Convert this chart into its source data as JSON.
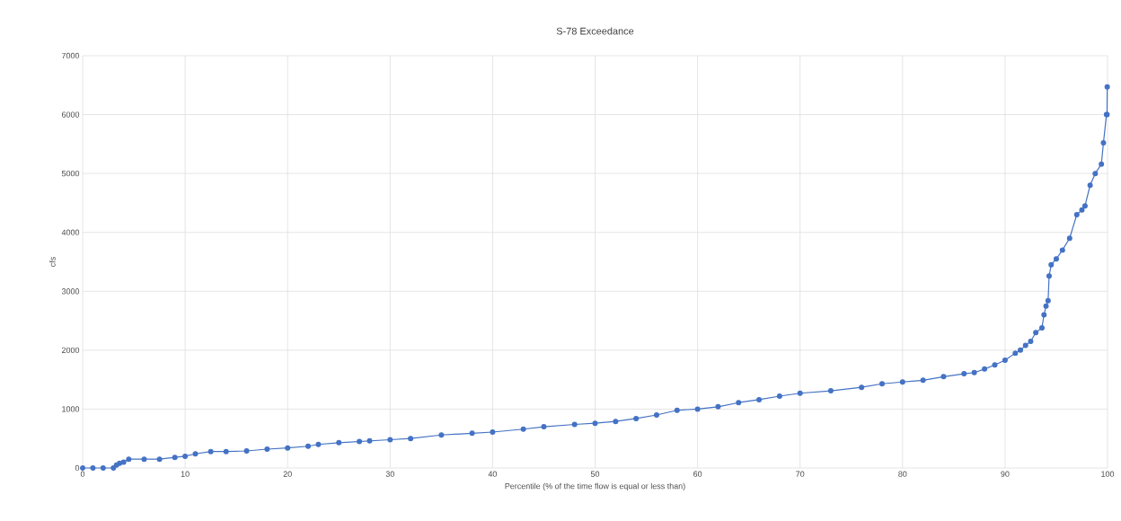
{
  "chart_data": {
    "type": "line",
    "title": "S-78 Exceedance",
    "xlabel": "Percentile (% of the time flow is equal or less than)",
    "ylabel": "cfs",
    "x": [
      0,
      1,
      2,
      3,
      3.3,
      3.6,
      4,
      4.5,
      6,
      7.5,
      9,
      10,
      11,
      12.5,
      14,
      16,
      18,
      20,
      22,
      23,
      25,
      27,
      28,
      30,
      32,
      35,
      38,
      40,
      43,
      45,
      48,
      50,
      52,
      54,
      56,
      58,
      60,
      62,
      64,
      66,
      68,
      70,
      73,
      76,
      78,
      80,
      82,
      84,
      86,
      87,
      88,
      89,
      90,
      91,
      91.5,
      92,
      92.5,
      93,
      93.6,
      93.8,
      94,
      94.2,
      94.3,
      94.5,
      95,
      95.6,
      96.3,
      97,
      97.5,
      97.8,
      98.3,
      98.8,
      99.4,
      99.6,
      99.9,
      99.95,
      99.97
    ],
    "series": [
      {
        "color": "#4472c4",
        "values": [
          0,
          0,
          0,
          0,
          50,
          80,
          100,
          150,
          150,
          150,
          180,
          200,
          240,
          280,
          280,
          290,
          320,
          340,
          370,
          400,
          430,
          450,
          460,
          480,
          500,
          560,
          590,
          610,
          660,
          700,
          740,
          760,
          790,
          840,
          900,
          980,
          1000,
          1040,
          1110,
          1160,
          1220,
          1270,
          1310,
          1370,
          1430,
          1460,
          1490,
          1550,
          1600,
          1620,
          1680,
          1750,
          1830,
          1950,
          2000,
          2080,
          2150,
          2300,
          2380,
          2600,
          2750,
          2840,
          3260,
          3450,
          3550,
          3700,
          3900,
          4300,
          4380,
          4450,
          4800,
          5000,
          5160,
          5520,
          6000,
          6000,
          6470
        ]
      }
    ],
    "xlim": [
      0,
      100
    ],
    "ylim": [
      0,
      7000
    ],
    "xticks": [
      0,
      10,
      20,
      30,
      40,
      50,
      60,
      70,
      80,
      90,
      100
    ],
    "yticks": [
      0,
      1000,
      2000,
      3000,
      4000,
      5000,
      6000,
      7000
    ],
    "grid": true,
    "marker": "circle",
    "line_style": "solid"
  }
}
